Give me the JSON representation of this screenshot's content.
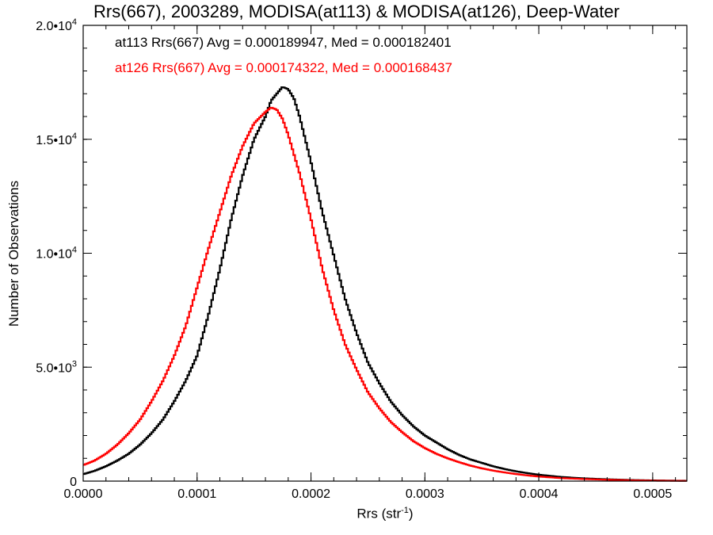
{
  "chart_data": {
    "type": "histogram",
    "title": "Rrs(667), 2003289, MODISA(at113) & MODISA(at126), Deep-Water",
    "xlabel": "Rrs (str",
    "xlabel_sup": "-1",
    "xlabel_end": ")",
    "ylabel": "Number of Observations",
    "xlim": [
      0,
      0.00053
    ],
    "ylim": [
      0,
      20000
    ],
    "x_ticks": [
      {
        "value": 0.0,
        "label": "0.0000"
      },
      {
        "value": 0.0001,
        "label": "0.0001"
      },
      {
        "value": 0.0002,
        "label": "0.0002"
      },
      {
        "value": 0.0003,
        "label": "0.0003"
      },
      {
        "value": 0.0004,
        "label": "0.0004"
      },
      {
        "value": 0.0005,
        "label": "0.0005"
      }
    ],
    "y_ticks": [
      {
        "value": 0,
        "mant": "0",
        "exp": ""
      },
      {
        "value": 5000,
        "mant": "5.0•10",
        "exp": "3"
      },
      {
        "value": 10000,
        "mant": "1.0•10",
        "exp": "4"
      },
      {
        "value": 15000,
        "mant": "1.5•10",
        "exp": "4"
      },
      {
        "value": 20000,
        "mant": "2.0•10",
        "exp": "4"
      }
    ],
    "series": [
      {
        "name": "at113",
        "color": "#000000",
        "legend": "at113 Rrs(667) Avg = 0.000189947, Med = 0.000182401",
        "x": [
          0.0,
          1e-05,
          2e-05,
          3e-05,
          4e-05,
          5e-05,
          6e-05,
          7e-05,
          8e-05,
          9e-05,
          0.0001,
          0.00011,
          0.00012,
          0.00013,
          0.00014,
          0.00015,
          0.00016,
          0.000165,
          0.00017,
          0.000175,
          0.00018,
          0.000185,
          0.00019,
          0.0002,
          0.00021,
          0.00022,
          0.00023,
          0.00024,
          0.00025,
          0.00026,
          0.00027,
          0.00028,
          0.00029,
          0.0003,
          0.00031,
          0.00032,
          0.00033,
          0.00034,
          0.00035,
          0.00036,
          0.00037,
          0.00038,
          0.00039,
          0.0004,
          0.00042,
          0.00044,
          0.00046,
          0.00048,
          0.0005,
          0.00053
        ],
        "y": [
          300,
          450,
          650,
          900,
          1200,
          1600,
          2100,
          2700,
          3500,
          4400,
          5500,
          7300,
          9300,
          11500,
          13400,
          15000,
          16000,
          16700,
          17000,
          17300,
          17200,
          16800,
          16000,
          14000,
          11800,
          9900,
          8000,
          6500,
          5200,
          4300,
          3500,
          2900,
          2400,
          2000,
          1700,
          1400,
          1150,
          950,
          800,
          650,
          530,
          430,
          350,
          280,
          180,
          120,
          80,
          50,
          30,
          15
        ]
      },
      {
        "name": "at126",
        "color": "#ff0000",
        "legend": "at126 Rrs(667) Avg = 0.000174322, Med = 0.000168437",
        "x": [
          0.0,
          1e-05,
          2e-05,
          3e-05,
          4e-05,
          5e-05,
          6e-05,
          7e-05,
          8e-05,
          9e-05,
          0.0001,
          0.00011,
          0.00012,
          0.00013,
          0.00014,
          0.00015,
          0.00016,
          0.000165,
          0.00017,
          0.000175,
          0.00018,
          0.00019,
          0.0002,
          0.00021,
          0.00022,
          0.00023,
          0.00024,
          0.00025,
          0.00026,
          0.00027,
          0.00028,
          0.00029,
          0.0003,
          0.00031,
          0.00032,
          0.00033,
          0.00034,
          0.00035,
          0.00036,
          0.00037,
          0.00038,
          0.00039,
          0.0004,
          0.00042,
          0.00044,
          0.00046,
          0.00048,
          0.0005,
          0.00053
        ],
        "y": [
          700,
          900,
          1200,
          1600,
          2100,
          2700,
          3500,
          4400,
          5500,
          6800,
          8500,
          10200,
          11800,
          13400,
          14700,
          15700,
          16200,
          16400,
          16300,
          15900,
          15200,
          13500,
          11500,
          9300,
          7500,
          6000,
          4900,
          3900,
          3200,
          2600,
          2150,
          1750,
          1450,
          1200,
          1000,
          830,
          680,
          560,
          460,
          380,
          310,
          250,
          200,
          130,
          90,
          60,
          35,
          20,
          10
        ]
      }
    ]
  }
}
